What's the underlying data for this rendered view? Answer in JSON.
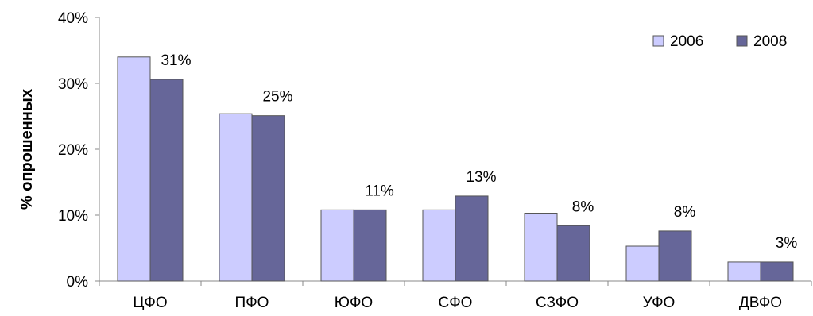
{
  "chart_data": {
    "type": "bar",
    "title": "",
    "xlabel": "",
    "ylabel": "% опрошенных",
    "categories": [
      "ЦФО",
      "ПФО",
      "ЮФО",
      "СФО",
      "СЗФО",
      "УФО",
      "ДВФО"
    ],
    "series": [
      {
        "name": "2006",
        "color": "#ccccff",
        "values": [
          34,
          25.4,
          10.8,
          10.8,
          10.3,
          5.3,
          2.9
        ]
      },
      {
        "name": "2008",
        "color": "#666699",
        "values": [
          30.6,
          25.1,
          10.8,
          12.9,
          8.4,
          7.6,
          2.9
        ]
      }
    ],
    "data_labels": [
      "31%",
      "25%",
      "11%",
      "13%",
      "8%",
      "8%",
      "3%"
    ],
    "yticks": [
      "0%",
      "10%",
      "20%",
      "30%",
      "40%"
    ],
    "ylim": [
      0,
      40
    ],
    "grid": false,
    "legend_position": "top-right",
    "bar_border_color": "#555555"
  }
}
